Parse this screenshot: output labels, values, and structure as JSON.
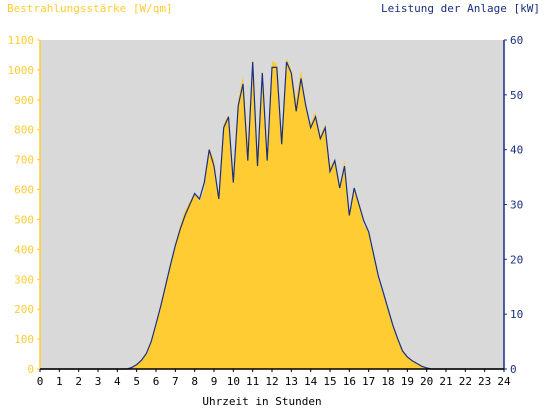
{
  "chart_data": {
    "type": "area",
    "left_axis_label": "Bestrahlungsstärke [W/qm]",
    "right_axis_label": "Leistung der Anlage [kW]",
    "xlabel": "Uhrzeit in Stunden",
    "x_ticks": [
      "0",
      "1",
      "2",
      "3",
      "4",
      "5",
      "6",
      "7",
      "8",
      "9",
      "10",
      "11",
      "12",
      "13",
      "14",
      "15",
      "16",
      "17",
      "18",
      "19",
      "20",
      "21",
      "22",
      "23",
      "24"
    ],
    "left_ticks": [
      "0",
      "100",
      "200",
      "300",
      "400",
      "500",
      "600",
      "700",
      "800",
      "900",
      "1000",
      "1100"
    ],
    "right_ticks": [
      "0",
      "10",
      "20",
      "30",
      "40",
      "50",
      "60"
    ],
    "xlim": [
      0,
      24
    ],
    "ylim_left": [
      0,
      1100
    ],
    "ylim_right": [
      0,
      60
    ],
    "grid": false,
    "colors": {
      "plot_background": "#d9d9d9",
      "irradiance": "#ffcc33",
      "power": "#1a2f80",
      "left_axis": "#ffcc33",
      "right_axis": "#1a2f80"
    },
    "series": [
      {
        "name": "Bestrahlungsstärke [W/qm]",
        "axis": "left",
        "x": [
          0,
          4.5,
          4.75,
          5,
          5.25,
          5.5,
          5.75,
          6,
          6.25,
          6.5,
          6.75,
          7,
          7.25,
          7.5,
          7.75,
          8,
          8.25,
          8.5,
          8.75,
          9,
          9.25,
          9.5,
          9.75,
          10,
          10.25,
          10.5,
          10.75,
          11,
          11.25,
          11.5,
          11.75,
          12,
          12.25,
          12.5,
          12.75,
          13,
          13.25,
          13.5,
          13.75,
          14,
          14.25,
          14.5,
          14.75,
          15,
          15.25,
          15.5,
          15.75,
          16,
          16.25,
          16.5,
          16.75,
          17,
          17.25,
          17.5,
          17.75,
          18,
          18.25,
          18.5,
          18.75,
          19,
          19.25,
          19.5,
          19.75,
          20,
          20.25,
          20.5,
          24
        ],
        "y": [
          0,
          0,
          5,
          15,
          30,
          50,
          90,
          150,
          210,
          280,
          350,
          420,
          480,
          530,
          560,
          590,
          560,
          600,
          740,
          700,
          560,
          820,
          850,
          620,
          900,
          980,
          760,
          1040,
          720,
          1000,
          700,
          1030,
          1020,
          760,
          1040,
          1000,
          900,
          1000,
          880,
          820,
          860,
          780,
          820,
          680,
          700,
          600,
          700,
          520,
          600,
          560,
          480,
          460,
          380,
          300,
          250,
          200,
          150,
          100,
          60,
          40,
          28,
          18,
          10,
          5,
          2,
          0,
          0
        ]
      },
      {
        "name": "Leistung der Anlage [kW]",
        "axis": "right",
        "x": [
          0,
          4.5,
          4.75,
          5,
          5.25,
          5.5,
          5.75,
          6,
          6.25,
          6.5,
          6.75,
          7,
          7.25,
          7.5,
          7.75,
          8,
          8.25,
          8.5,
          8.75,
          9,
          9.25,
          9.5,
          9.75,
          10,
          10.25,
          10.5,
          10.75,
          11,
          11.25,
          11.5,
          11.75,
          12,
          12.25,
          12.5,
          12.75,
          13,
          13.25,
          13.5,
          13.75,
          14,
          14.25,
          14.5,
          14.75,
          15,
          15.25,
          15.5,
          15.75,
          16,
          16.25,
          16.5,
          16.75,
          17,
          17.25,
          17.5,
          17.75,
          18,
          18.25,
          18.5,
          18.75,
          19,
          19.25,
          19.5,
          19.75,
          20,
          20.25,
          20.5,
          24
        ],
        "y": [
          0,
          0,
          0.3,
          0.8,
          1.6,
          2.8,
          5,
          8.2,
          11.5,
          15.3,
          19,
          22.5,
          25.5,
          28,
          30,
          32,
          31,
          34,
          40,
          37,
          31,
          44,
          46,
          34,
          48,
          52,
          38,
          56,
          37,
          54,
          38,
          55,
          55,
          41,
          56,
          54,
          47,
          53,
          48,
          44,
          46,
          42,
          44,
          36,
          38,
          33,
          37,
          28,
          33,
          30,
          27,
          25,
          21,
          17,
          14,
          11,
          8,
          5.5,
          3.3,
          2.2,
          1.5,
          1,
          0.5,
          0.2,
          0,
          0,
          0
        ]
      }
    ]
  }
}
